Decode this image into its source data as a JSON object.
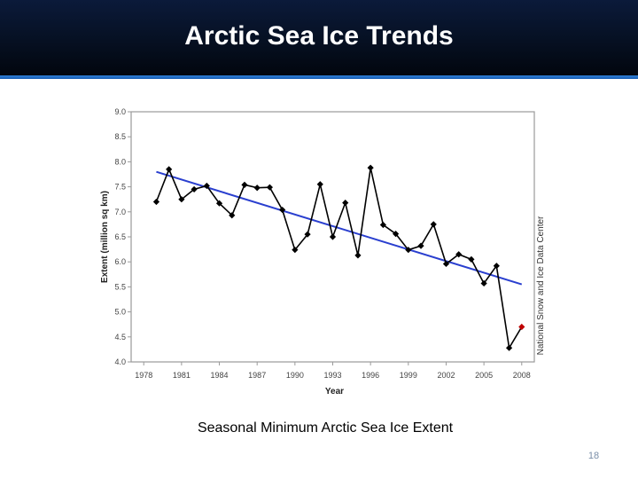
{
  "slide": {
    "title": "Arctic Sea Ice Trends",
    "caption": "Seasonal Minimum Arctic Sea Ice Extent",
    "page_number": "18"
  },
  "colors": {
    "header_bg": "#061022",
    "header_rule": "#1a5fb4",
    "trend_line": "#2a3fcf",
    "data_line": "#000000",
    "highlight_point": "#c00000"
  },
  "chart_data": {
    "type": "line",
    "xlabel": "Year",
    "ylabel": "Extent (million sq km)",
    "source_label": "National Snow and Ice Data Center",
    "xlim": [
      1977,
      2009
    ],
    "ylim": [
      4.0,
      9.0
    ],
    "x_ticks": [
      1978,
      1981,
      1984,
      1987,
      1990,
      1993,
      1996,
      1999,
      2002,
      2005,
      2008
    ],
    "y_ticks": [
      "4.0",
      "4.5",
      "5.0",
      "5.5",
      "6.0",
      "6.5",
      "7.0",
      "7.5",
      "8.0",
      "8.5",
      "9.0"
    ],
    "grid": false,
    "series": [
      {
        "x": [
          1979,
          1980,
          1981,
          1982,
          1983,
          1984,
          1985,
          1986,
          1987,
          1988,
          1989,
          1990,
          1991,
          1992,
          1993,
          1994,
          1995,
          1996,
          1997,
          1998,
          1999,
          2000,
          2001,
          2002,
          2003,
          2004,
          2005,
          2006,
          2007,
          2008
        ],
        "values": [
          7.2,
          7.85,
          7.25,
          7.45,
          7.52,
          7.17,
          6.93,
          7.54,
          7.48,
          7.49,
          7.04,
          6.24,
          6.55,
          7.55,
          6.5,
          7.18,
          6.13,
          7.88,
          6.74,
          6.56,
          6.24,
          6.32,
          6.75,
          5.96,
          6.15,
          6.05,
          5.57,
          5.92,
          4.28,
          4.7
        ],
        "highlight_last": true
      }
    ],
    "trend": {
      "x": [
        1979,
        2008
      ],
      "values": [
        7.8,
        5.55
      ]
    }
  }
}
